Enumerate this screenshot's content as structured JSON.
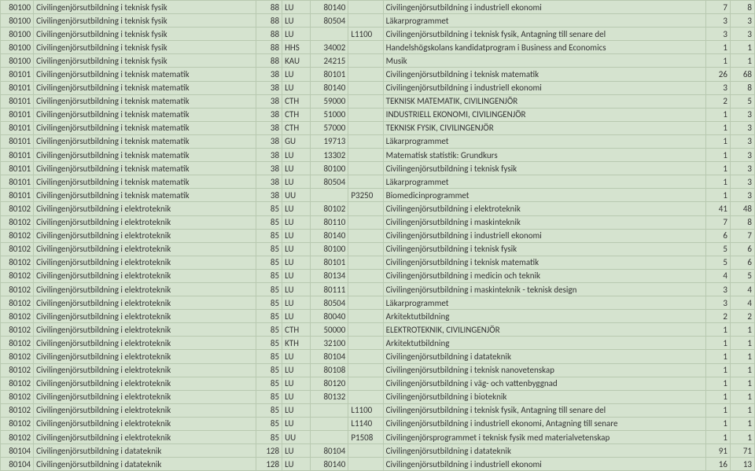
{
  "columns": [
    {
      "cls": "c0"
    },
    {
      "cls": "c1"
    },
    {
      "cls": "c2"
    },
    {
      "cls": "c3"
    },
    {
      "cls": "c4"
    },
    {
      "cls": "c5"
    },
    {
      "cls": "c6"
    },
    {
      "cls": "c7"
    },
    {
      "cls": "c8"
    }
  ],
  "rows": [
    [
      "80100",
      "Civilingenjörsutbildning i teknisk fysik",
      "88",
      "LU",
      "80140",
      "",
      "Civilingenjörsutbildning i industriell ekonomi",
      "7",
      "8"
    ],
    [
      "80100",
      "Civilingenjörsutbildning i teknisk fysik",
      "88",
      "LU",
      "80504",
      "",
      "Läkarprogrammet",
      "3",
      "3"
    ],
    [
      "80100",
      "Civilingenjörsutbildning i teknisk fysik",
      "88",
      "LU",
      "",
      "L1100",
      "Civilingenjörsutbildning i teknisk fysik, Antagning till senare del",
      "3",
      "3"
    ],
    [
      "80100",
      "Civilingenjörsutbildning i teknisk fysik",
      "88",
      "HHS",
      "34002",
      "",
      "Handelshögskolans kandidatprogram i Business and Economics",
      "1",
      "1"
    ],
    [
      "80100",
      "Civilingenjörsutbildning i teknisk fysik",
      "88",
      "KAU",
      "24215",
      "",
      "Musik",
      "1",
      "1"
    ],
    [
      "80101",
      "Civilingenjörsutbildning i teknisk matematik",
      "38",
      "LU",
      "80101",
      "",
      "Civilingenjörsutbildning i teknisk matematik",
      "26",
      "68"
    ],
    [
      "80101",
      "Civilingenjörsutbildning i teknisk matematik",
      "38",
      "LU",
      "80140",
      "",
      "Civilingenjörsutbildning i industriell ekonomi",
      "3",
      "8"
    ],
    [
      "80101",
      "Civilingenjörsutbildning i teknisk matematik",
      "38",
      "CTH",
      "59000",
      "",
      "TEKNISK MATEMATIK, CIVILINGENJÖR",
      "2",
      "5"
    ],
    [
      "80101",
      "Civilingenjörsutbildning i teknisk matematik",
      "38",
      "CTH",
      "51000",
      "",
      "INDUSTRIELL EKONOMI, CIVILINGENJÖR",
      "1",
      "3"
    ],
    [
      "80101",
      "Civilingenjörsutbildning i teknisk matematik",
      "38",
      "CTH",
      "57000",
      "",
      "TEKNISK FYSIK, CIVILINGENJÖR",
      "1",
      "3"
    ],
    [
      "80101",
      "Civilingenjörsutbildning i teknisk matematik",
      "38",
      "GU",
      "19713",
      "",
      "Läkarprogrammet",
      "1",
      "3"
    ],
    [
      "80101",
      "Civilingenjörsutbildning i teknisk matematik",
      "38",
      "LU",
      "13302",
      "",
      "Matematisk statistik: Grundkurs",
      "1",
      "3"
    ],
    [
      "80101",
      "Civilingenjörsutbildning i teknisk matematik",
      "38",
      "LU",
      "80100",
      "",
      "Civilingenjörsutbildning i teknisk fysik",
      "1",
      "3"
    ],
    [
      "80101",
      "Civilingenjörsutbildning i teknisk matematik",
      "38",
      "LU",
      "80504",
      "",
      "Läkarprogrammet",
      "1",
      "3"
    ],
    [
      "80101",
      "Civilingenjörsutbildning i teknisk matematik",
      "38",
      "UU",
      "",
      "P3250",
      "Biomedicinprogrammet",
      "1",
      "3"
    ],
    [
      "80102",
      "Civilingenjörsutbildning i elektroteknik",
      "85",
      "LU",
      "80102",
      "",
      "Civilingenjörsutbildning i elektroteknik",
      "41",
      "48"
    ],
    [
      "80102",
      "Civilingenjörsutbildning i elektroteknik",
      "85",
      "LU",
      "80110",
      "",
      "Civilingenjörsutbildning i maskinteknik",
      "7",
      "8"
    ],
    [
      "80102",
      "Civilingenjörsutbildning i elektroteknik",
      "85",
      "LU",
      "80140",
      "",
      "Civilingenjörsutbildning i industriell ekonomi",
      "6",
      "7"
    ],
    [
      "80102",
      "Civilingenjörsutbildning i elektroteknik",
      "85",
      "LU",
      "80100",
      "",
      "Civilingenjörsutbildning i teknisk fysik",
      "5",
      "6"
    ],
    [
      "80102",
      "Civilingenjörsutbildning i elektroteknik",
      "85",
      "LU",
      "80101",
      "",
      "Civilingenjörsutbildning i teknisk matematik",
      "5",
      "6"
    ],
    [
      "80102",
      "Civilingenjörsutbildning i elektroteknik",
      "85",
      "LU",
      "80134",
      "",
      "Civilingenjörsutbildning i medicin och teknik",
      "4",
      "5"
    ],
    [
      "80102",
      "Civilingenjörsutbildning i elektroteknik",
      "85",
      "LU",
      "80111",
      "",
      "Civilingenjörsutbildning i maskinteknik - teknisk design",
      "3",
      "4"
    ],
    [
      "80102",
      "Civilingenjörsutbildning i elektroteknik",
      "85",
      "LU",
      "80504",
      "",
      "Läkarprogrammet",
      "3",
      "4"
    ],
    [
      "80102",
      "Civilingenjörsutbildning i elektroteknik",
      "85",
      "LU",
      "80040",
      "",
      "Arkitektutbildning",
      "2",
      "2"
    ],
    [
      "80102",
      "Civilingenjörsutbildning i elektroteknik",
      "85",
      "CTH",
      "50000",
      "",
      "ELEKTROTEKNIK, CIVILINGENJÖR",
      "1",
      "1"
    ],
    [
      "80102",
      "Civilingenjörsutbildning i elektroteknik",
      "85",
      "KTH",
      "32100",
      "",
      "Arkitektutbildning",
      "1",
      "1"
    ],
    [
      "80102",
      "Civilingenjörsutbildning i elektroteknik",
      "85",
      "LU",
      "80104",
      "",
      "Civilingenjörsutbildning i datateknik",
      "1",
      "1"
    ],
    [
      "80102",
      "Civilingenjörsutbildning i elektroteknik",
      "85",
      "LU",
      "80108",
      "",
      "Civilingenjörsutbildning i teknisk nanovetenskap",
      "1",
      "1"
    ],
    [
      "80102",
      "Civilingenjörsutbildning i elektroteknik",
      "85",
      "LU",
      "80120",
      "",
      "Civilingenjörsutbildning i väg- och vattenbyggnad",
      "1",
      "1"
    ],
    [
      "80102",
      "Civilingenjörsutbildning i elektroteknik",
      "85",
      "LU",
      "80132",
      "",
      "Civilingenjörsutbildning i bioteknik",
      "1",
      "1"
    ],
    [
      "80102",
      "Civilingenjörsutbildning i elektroteknik",
      "85",
      "LU",
      "",
      "L1100",
      "Civilingenjörsutbildning i teknisk fysik, Antagning till senare del",
      "1",
      "1"
    ],
    [
      "80102",
      "Civilingenjörsutbildning i elektroteknik",
      "85",
      "LU",
      "",
      "L1140",
      "Civilingenjörsutbildning i industriell ekonomi, Antagning till senare",
      "1",
      "1"
    ],
    [
      "80102",
      "Civilingenjörsutbildning i elektroteknik",
      "85",
      "UU",
      "",
      "P1508",
      "Civilingenjörsprogrammet i teknisk fysik med materialvetenskap",
      "1",
      "1"
    ],
    [
      "80104",
      "Civilingenjörsutbildning i datateknik",
      "128",
      "LU",
      "80104",
      "",
      "Civilingenjörsutbildning i datateknik",
      "91",
      "71"
    ],
    [
      "80104",
      "Civilingenjörsutbildning i datateknik",
      "128",
      "LU",
      "80140",
      "",
      "Civilingenjörsutbildning i industriell ekonomi",
      "16",
      "13"
    ]
  ]
}
